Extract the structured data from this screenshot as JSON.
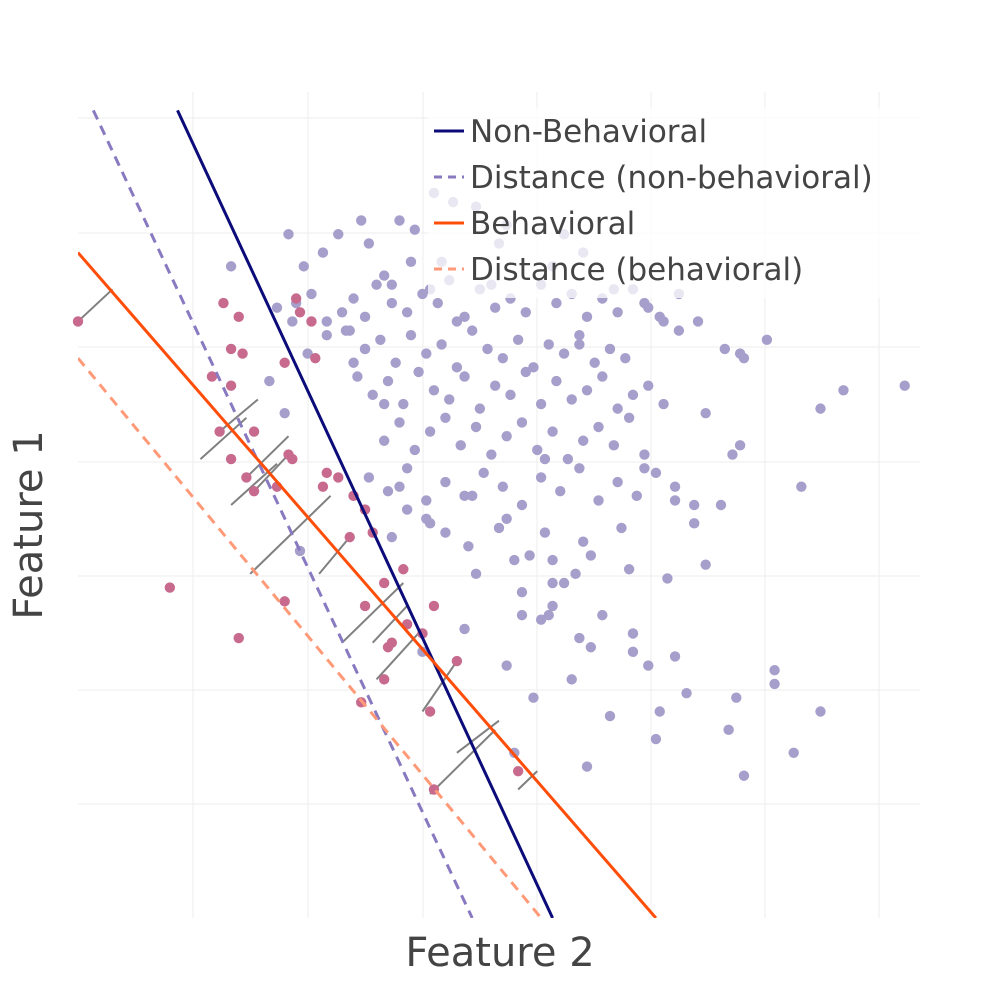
{
  "chart_data": {
    "type": "scatter",
    "title": "",
    "xlabel": "Feature 2",
    "ylabel": "Feature 1",
    "xlim": [
      0,
      22
    ],
    "ylim": [
      0,
      18
    ],
    "grid": true,
    "legend_placement": "top-right",
    "colors": {
      "grid": "#eeeeee",
      "class_a": "#a79fcb",
      "class_b": "#c76a8e",
      "non_behavioral": "#0b0b7a",
      "distance_non_behavioral": "#8879c0",
      "behavioral": "#ff4d0a",
      "distance_behavioral": "#ff9a78",
      "connector": "#808080"
    },
    "legend": [
      {
        "label": "Non-Behavioral",
        "key": "non_behavioral",
        "dash": false
      },
      {
        "label": "Distance (non-behavioral)",
        "key": "distance_non_behavioral",
        "dash": true
      },
      {
        "label": "Behavioral",
        "key": "behavioral",
        "dash": false
      },
      {
        "label": "Distance (behavioral)",
        "key": "distance_behavioral",
        "dash": true
      }
    ],
    "lines": [
      {
        "name": "Non-Behavioral",
        "key": "non_behavioral",
        "dash": false,
        "x1": 2.6,
        "y1": 17.6,
        "x2": 12.4,
        "y2": 0
      },
      {
        "name": "Distance (non-behavioral)",
        "key": "distance_non_behavioral",
        "dash": true,
        "x1": 0.4,
        "y1": 17.6,
        "x2": 10.3,
        "y2": 0
      },
      {
        "name": "Behavioral",
        "key": "behavioral",
        "dash": false,
        "x1": 0,
        "y1": 14.5,
        "x2": 15.1,
        "y2": 0
      },
      {
        "name": "Distance (behavioral)",
        "key": "distance_behavioral",
        "dash": true,
        "x1": 0,
        "y1": 12.2,
        "x2": 12.1,
        "y2": 0
      }
    ],
    "connectors": [
      [
        0,
        13.0,
        0.9,
        13.7
      ],
      [
        3.7,
        10.6,
        4.7,
        11.3
      ],
      [
        3.2,
        10.0,
        4.4,
        10.9
      ],
      [
        4.4,
        9.6,
        5.5,
        10.5
      ],
      [
        4.0,
        9.0,
        5.2,
        9.9
      ],
      [
        4.6,
        9.3,
        5.5,
        10.1
      ],
      [
        4.5,
        7.5,
        6.6,
        9.2
      ],
      [
        6.3,
        7.5,
        7.1,
        8.3
      ],
      [
        6.9,
        6.0,
        8.5,
        7.3
      ],
      [
        7.7,
        6.0,
        8.6,
        6.8
      ],
      [
        7.8,
        5.2,
        9.0,
        6.3
      ],
      [
        9.0,
        4.5,
        9.9,
        5.6
      ],
      [
        9.9,
        3.6,
        11.0,
        4.3
      ],
      [
        9.2,
        2.7,
        10.9,
        4.1
      ],
      [
        11.5,
        2.8,
        12.0,
        3.2
      ]
    ],
    "series": [
      {
        "name": "",
        "key": "class_a",
        "x": [
          5.9,
          6.4,
          5.6,
          7.0,
          8.0,
          8.8,
          9.3,
          9.5,
          8.4,
          7.6,
          9.8,
          10.4,
          11.0,
          11.2,
          12.4,
          12.7,
          13.2,
          14.0,
          14.8,
          15.2,
          15.7,
          16.2,
          17.3,
          18.0,
          19.4,
          20.0,
          21.6,
          16.4,
          16.9,
          17.4,
          17.1,
          14.8,
          15.6,
          16.1,
          13.0,
          12.7,
          12.4,
          11.6,
          11.8,
          11.0,
          10.3,
          9.6,
          9.1,
          8.4,
          8.0,
          7.5,
          7.2,
          6.5,
          6.0,
          5.4,
          5.0,
          5.2,
          5.7,
          6.1,
          6.5,
          6.9,
          7.2,
          7.5,
          7.8,
          8.2,
          8.6,
          9.0,
          9.4,
          9.7,
          10.1,
          10.5,
          10.9,
          11.3,
          11.7,
          12.1,
          12.5,
          12.9,
          13.3,
          13.7,
          14.1,
          14.5,
          14.9,
          15.3,
          15.7,
          7.1,
          7.5,
          7.9,
          8.3,
          8.7,
          9.1,
          9.5,
          9.9,
          10.3,
          10.7,
          11.1,
          11.5,
          11.9,
          12.3,
          12.7,
          13.1,
          13.5,
          13.9,
          14.3,
          7.3,
          7.7,
          8.1,
          8.5,
          8.9,
          9.3,
          9.7,
          10.1,
          10.5,
          10.9,
          11.3,
          11.7,
          12.1,
          12.5,
          12.9,
          13.3,
          13.7,
          14.1,
          14.5,
          14.9,
          15.3,
          8.0,
          8.4,
          8.8,
          9.2,
          9.6,
          10.0,
          10.4,
          10.8,
          11.2,
          11.6,
          12.0,
          12.4,
          12.8,
          13.2,
          13.6,
          14.0,
          14.4,
          14.8,
          7.6,
          8.1,
          8.6,
          9.1,
          9.6,
          10.1,
          10.6,
          11.1,
          11.6,
          12.1,
          12.6,
          13.1,
          13.6,
          14.1,
          14.6,
          15.1,
          15.6,
          16.1,
          8.2,
          9.2,
          10.2,
          11.2,
          12.2,
          13.2,
          14.2,
          10.4,
          11.4,
          12.4,
          13.4,
          14.4,
          15.4,
          16.4,
          9.0,
          10.1,
          11.2,
          12.3,
          13.4,
          14.5,
          15.6,
          11.9,
          12.9,
          13.9,
          14.9,
          15.9,
          17.2,
          18.2,
          11.4,
          13.3,
          15.1,
          17.4,
          18.7,
          17.0,
          15.2,
          14.5,
          13.1,
          12.1,
          11.6,
          12.4,
          13.7
        ],
        "y": [
          14.2,
          14.5,
          13.0,
          12.8,
          14.0,
          15.0,
          15.8,
          14.3,
          15.2,
          14.7,
          15.6,
          15.5,
          14.7,
          15.1,
          14.2,
          14.9,
          14.5,
          13.7,
          13.4,
          13.1,
          12.8,
          13.0,
          12.3,
          12.6,
          11.1,
          11.5,
          11.6,
          11.0,
          12.4,
          12.2,
          10.1,
          9.8,
          9.1,
          8.6,
          7.5,
          7.3,
          6.8,
          6.6,
          7.9,
          8.5,
          9.2,
          8.4,
          8.7,
          9.4,
          11.2,
          12.4,
          12.1,
          12.7,
          12.3,
          11.0,
          11.7,
          13.3,
          13.4,
          13.6,
          13.0,
          13.2,
          13.5,
          13.1,
          13.8,
          13.4,
          13.2,
          13.6,
          13.4,
          13.9,
          13.1,
          13.7,
          13.3,
          13.5,
          13.2,
          13.8,
          13.4,
          13.6,
          13.1,
          13.5,
          13.2,
          13.7,
          13.3,
          13.0,
          13.6,
          12.8,
          12.4,
          12.6,
          12.1,
          12.7,
          12.3,
          12.5,
          12.0,
          12.8,
          12.4,
          12.2,
          12.6,
          12.0,
          12.5,
          12.3,
          12.7,
          12.1,
          12.4,
          12.2,
          11.8,
          11.4,
          11.7,
          11.2,
          11.9,
          11.5,
          11.3,
          11.8,
          11.1,
          11.6,
          11.4,
          11.9,
          11.2,
          11.7,
          11.3,
          11.5,
          11.8,
          11.1,
          11.4,
          11.6,
          11.2,
          10.4,
          10.8,
          10.2,
          10.6,
          10.9,
          10.3,
          10.7,
          10.1,
          10.5,
          10.8,
          10.2,
          10.6,
          10.0,
          10.4,
          10.7,
          10.3,
          10.9,
          10.1,
          9.6,
          9.3,
          9.8,
          9.1,
          9.5,
          9.2,
          9.7,
          9.4,
          9.0,
          9.6,
          9.3,
          9.8,
          9.1,
          9.5,
          9.2,
          9.7,
          9.4,
          9.0,
          8.3,
          8.6,
          8.1,
          8.7,
          8.4,
          8.2,
          8.5,
          7.5,
          7.8,
          7.3,
          7.9,
          7.6,
          7.4,
          7.7,
          5.8,
          6.3,
          5.5,
          6.6,
          5.9,
          6.2,
          5.7,
          4.8,
          5.2,
          4.4,
          5.5,
          4.9,
          4.8,
          5.1,
          3.6,
          3.3,
          3.9,
          3.1,
          3.6,
          4.1,
          4.5,
          5.8,
          6.1,
          6.5,
          7.1,
          7.8,
          6.6
        ],
        "extra_x": [
          5.8,
          4.0,
          5.5,
          18.9,
          17.3,
          16.8,
          13.1,
          12.2,
          18.2,
          19.4,
          8.6,
          6.8,
          7.4,
          8.7,
          9.2,
          8.2,
          10.8,
          9.9
        ],
        "extra_y": [
          8.0,
          14.2,
          14.9,
          9.4,
          10.3,
          9.0,
          12.5,
          10.0,
          5.4,
          4.5,
          8.9,
          14.9,
          15.2,
          14.3,
          13.7,
          13.8,
          13.8,
          13.0
        ]
      },
      {
        "name": "",
        "key": "class_b",
        "x": [
          0,
          3.8,
          4.2,
          4.0,
          4.3,
          5.8,
          6.1,
          5.7,
          6.2,
          5.4,
          3.7,
          4.0,
          4.6,
          4.4,
          4.6,
          5.5,
          6.4,
          6.5,
          5.6,
          7.2,
          6.8,
          7.5,
          5.2,
          7.1,
          8.0,
          8.5,
          7.5,
          8.6,
          9.3,
          8.2,
          9.0,
          9.9,
          8.0,
          7.4,
          9.2,
          11.5,
          2.4,
          4.2,
          5.4,
          9.3,
          7.7,
          8.1,
          4.0,
          3.5
        ],
        "y": [
          13.0,
          13.4,
          13.1,
          12.4,
          12.3,
          13.2,
          13.0,
          13.5,
          12.2,
          12.1,
          10.6,
          10.0,
          10.6,
          9.6,
          9.3,
          10.1,
          9.4,
          9.7,
          10.0,
          9.2,
          9.6,
          8.9,
          9.4,
          8.3,
          7.3,
          7.6,
          6.8,
          6.4,
          6.8,
          6.0,
          6.2,
          5.6,
          5.2,
          4.7,
          4.5,
          3.2,
          7.2,
          6.1,
          6.9,
          2.8,
          8.4,
          5.9,
          11.6,
          11.8
        ]
      }
    ]
  }
}
